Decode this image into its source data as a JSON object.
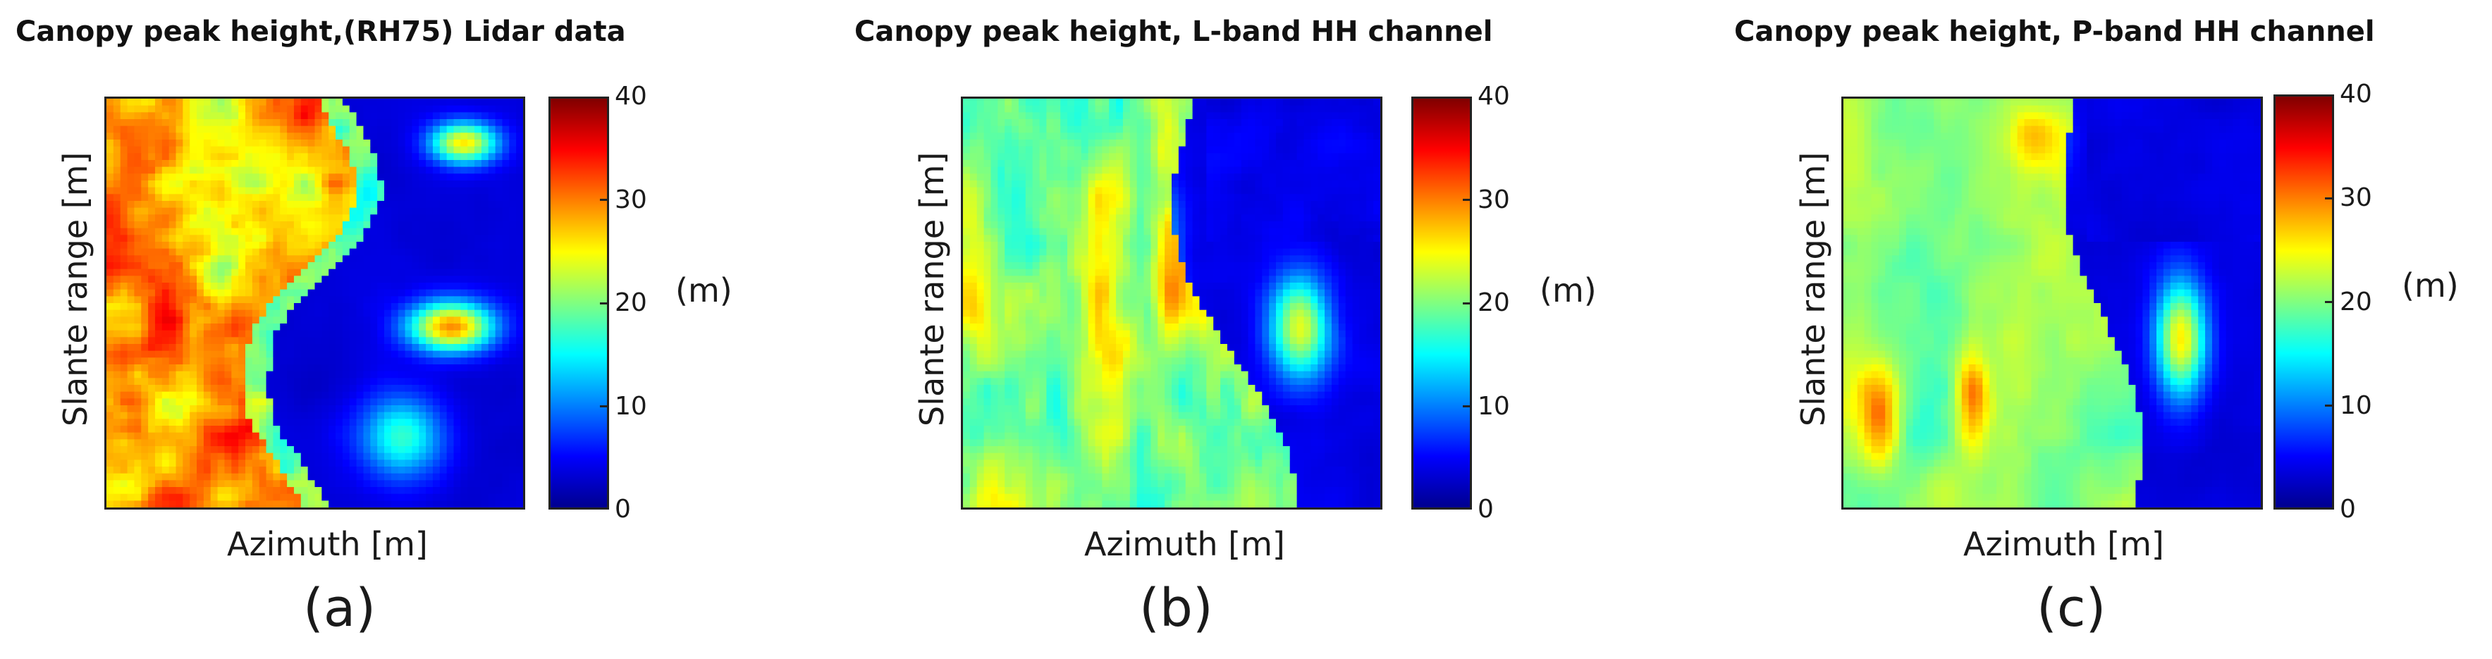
{
  "chart_data": [
    {
      "type": "heatmap",
      "title": "Canopy peak height,(RH75) Lidar data",
      "xlabel": "Azimuth [m]",
      "ylabel": "Slante range [m]",
      "colorbar": {
        "label": "(m)",
        "range": [
          0,
          40
        ],
        "ticks": [
          "40",
          "30",
          "20",
          "10",
          "0"
        ],
        "colormap": "jet"
      },
      "caption": "(a)",
      "pattern": "lidar"
    },
    {
      "type": "heatmap",
      "title": "Canopy peak height, L-band HH channel",
      "xlabel": "Azimuth [m]",
      "ylabel": "Slante range [m]",
      "colorbar": {
        "label": "(m)",
        "range": [
          0,
          40
        ],
        "ticks": [
          "40",
          "30",
          "20",
          "10",
          "0"
        ],
        "colormap": "jet"
      },
      "caption": "(b)",
      "pattern": "lband"
    },
    {
      "type": "heatmap",
      "title": "Canopy peak height, P-band HH channel",
      "xlabel": "Azimuth [m]",
      "ylabel": "Slante range [m]",
      "colorbar": {
        "label": "(m)",
        "range": [
          0,
          40
        ],
        "ticks": [
          "40",
          "30",
          "20",
          "10",
          "0"
        ],
        "colormap": "jet"
      },
      "caption": "(c)",
      "pattern": "pband"
    }
  ]
}
